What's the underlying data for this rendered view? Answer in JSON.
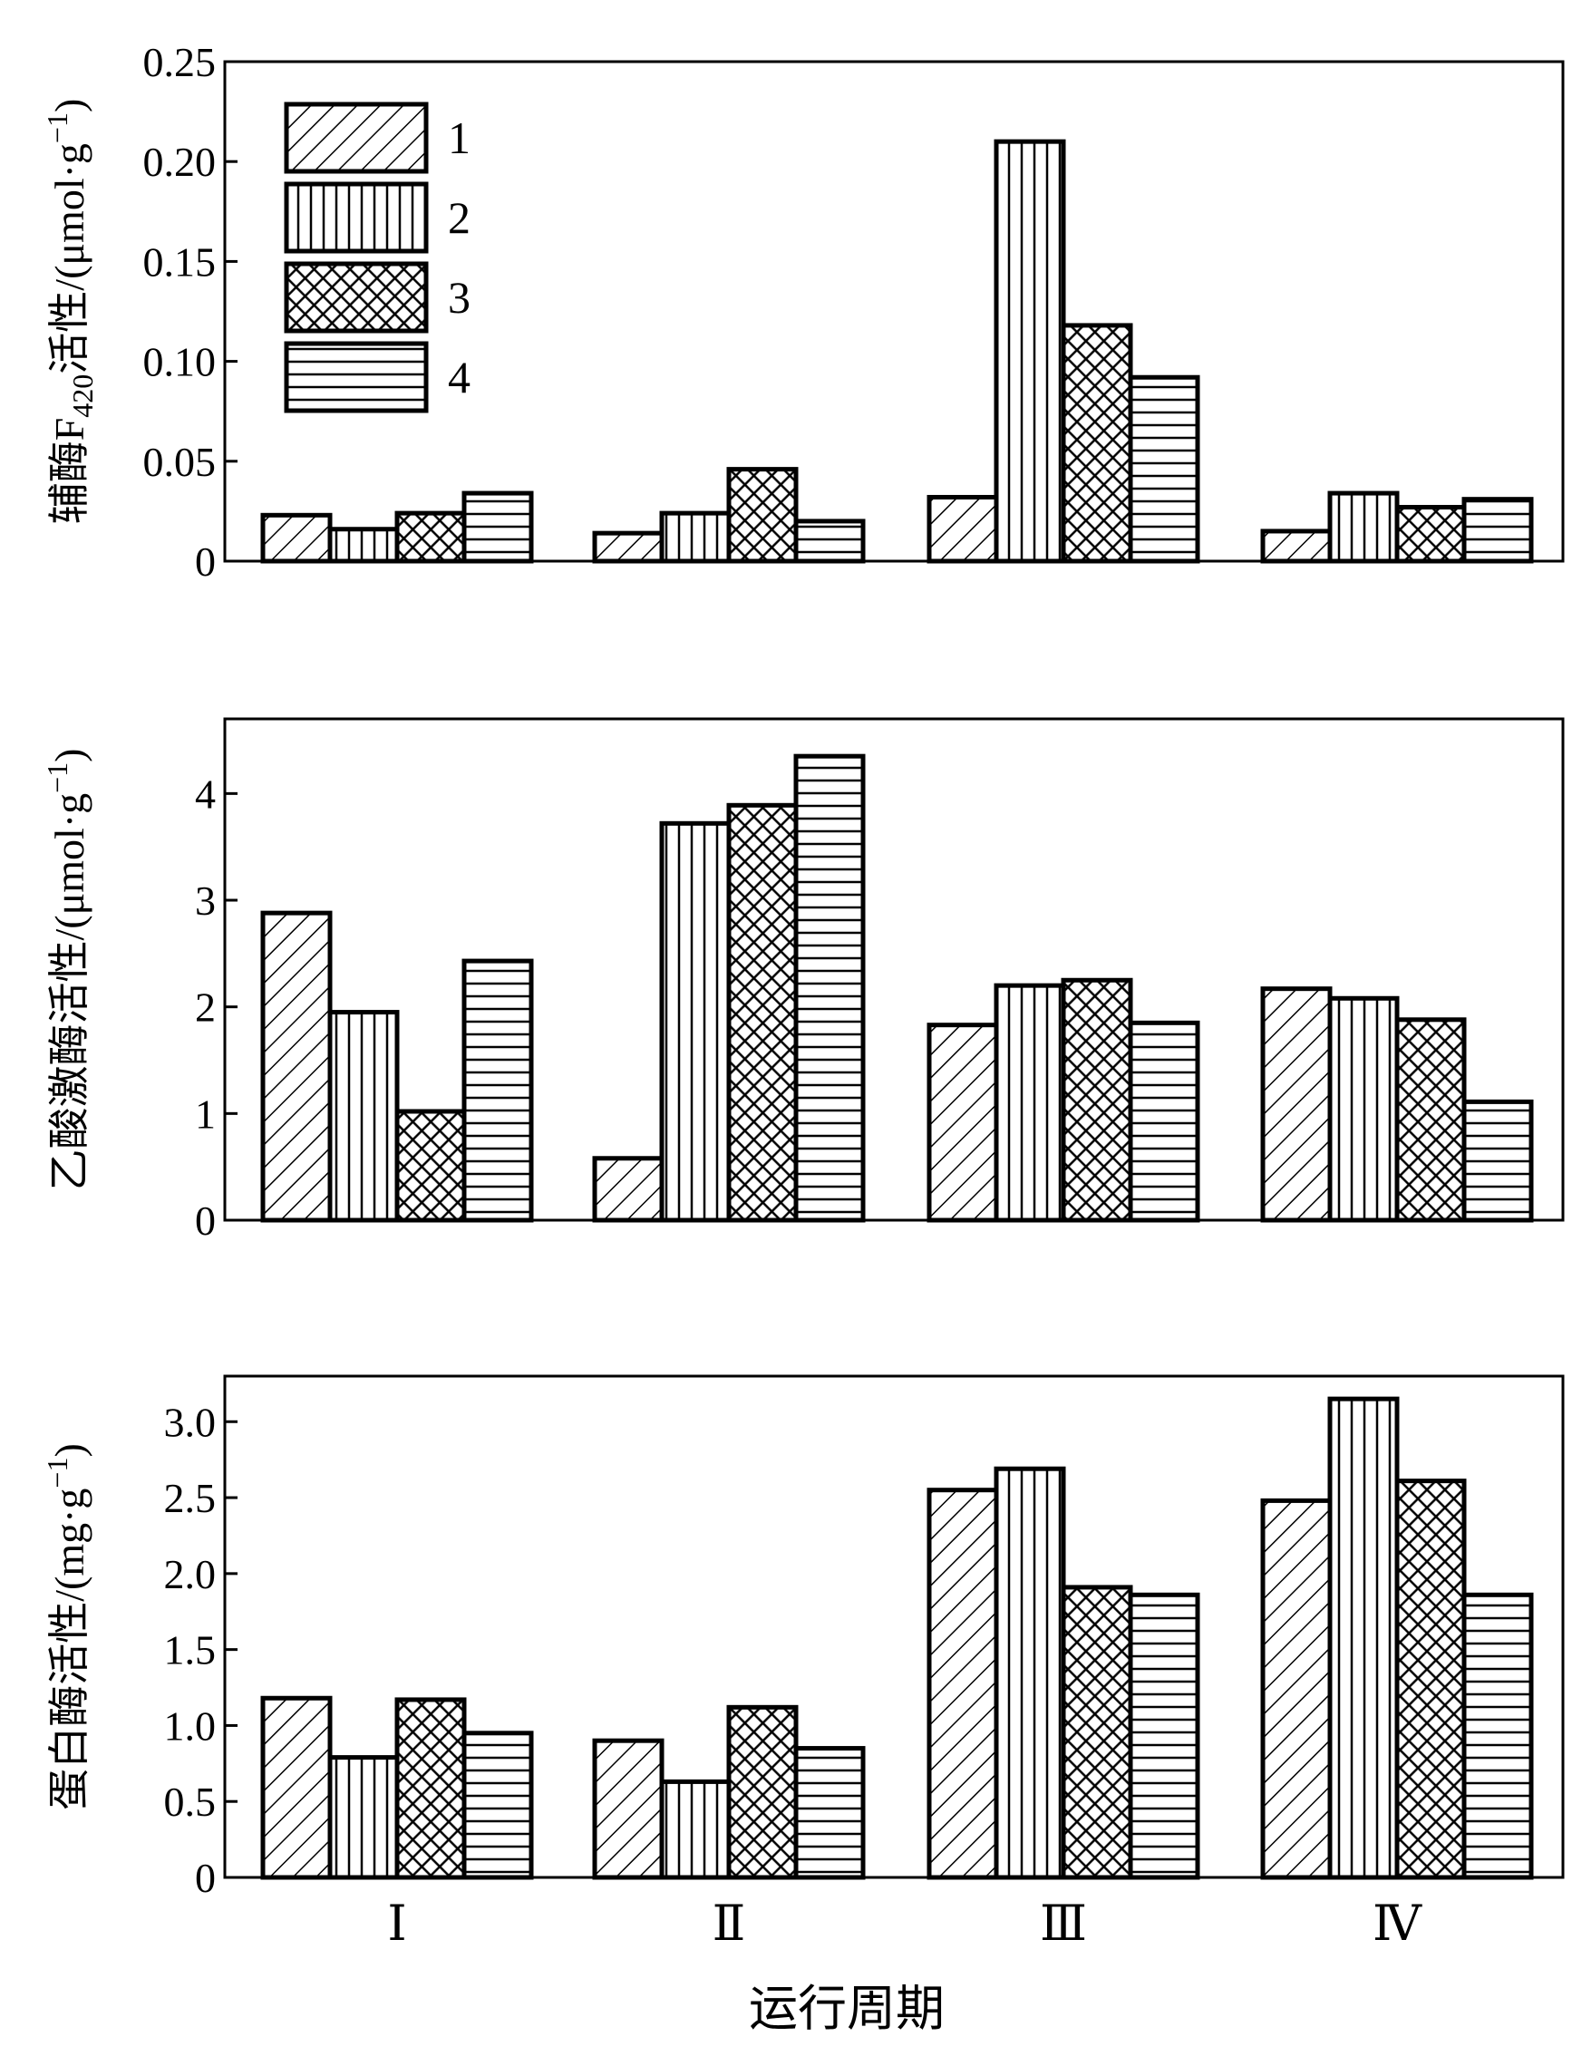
{
  "chart_data": [
    {
      "type": "bar",
      "ylabel": "辅酶F420活性/(μmol·g⁻¹)",
      "ylabel_parts": {
        "a": "辅酶F",
        "sub": "420",
        "b": "活性/(μmol·g",
        "sup": "−1",
        "c": ")"
      },
      "ylim": [
        0,
        0.25
      ],
      "yticks": [
        "0",
        "0.05",
        "0.10",
        "0.15",
        "0.20",
        "0.25"
      ],
      "ytick_values": [
        0,
        0.05,
        0.1,
        0.15,
        0.2,
        0.25
      ],
      "categories": [
        "Ⅰ",
        "Ⅱ",
        "Ⅲ",
        "Ⅳ"
      ],
      "legend": {
        "position": "top-left",
        "entries": [
          "1",
          "2",
          "3",
          "4"
        ]
      },
      "series": [
        {
          "name": "1",
          "pattern": "diagonal",
          "values": [
            0.023,
            0.014,
            0.032,
            0.015
          ]
        },
        {
          "name": "2",
          "pattern": "vertical",
          "values": [
            0.016,
            0.024,
            0.21,
            0.034
          ]
        },
        {
          "name": "3",
          "pattern": "crosshatch",
          "values": [
            0.024,
            0.046,
            0.118,
            0.027
          ]
        },
        {
          "name": "4",
          "pattern": "horizontal",
          "values": [
            0.034,
            0.02,
            0.092,
            0.031
          ]
        }
      ]
    },
    {
      "type": "bar",
      "ylabel": "乙酸激酶活性/(μmol·g⁻¹)",
      "ylabel_parts": {
        "a": "乙酸激酶活性/(μmol·g",
        "sup": "−1",
        "c": ")"
      },
      "ylim": [
        0,
        4.7
      ],
      "yticks": [
        "0",
        "1",
        "2",
        "3",
        "4"
      ],
      "ytick_values": [
        0,
        1,
        2,
        3,
        4
      ],
      "categories": [
        "Ⅰ",
        "Ⅱ",
        "Ⅲ",
        "Ⅳ"
      ],
      "series": [
        {
          "name": "1",
          "pattern": "diagonal",
          "values": [
            2.88,
            0.58,
            1.83,
            2.17
          ]
        },
        {
          "name": "2",
          "pattern": "vertical",
          "values": [
            1.95,
            3.72,
            2.2,
            2.08
          ]
        },
        {
          "name": "3",
          "pattern": "crosshatch",
          "values": [
            1.02,
            3.89,
            2.25,
            1.88
          ]
        },
        {
          "name": "4",
          "pattern": "horizontal",
          "values": [
            2.43,
            4.35,
            1.85,
            1.11
          ]
        }
      ]
    },
    {
      "type": "bar",
      "ylabel": "蛋白酶活性/(mg·g⁻¹)",
      "ylabel_parts": {
        "a": "蛋白酶活性/(mg·g",
        "sup": "−1",
        "c": ")"
      },
      "ylim": [
        0,
        3.3
      ],
      "yticks": [
        "0",
        "0.5",
        "1.0",
        "1.5",
        "2.0",
        "2.5",
        "3.0"
      ],
      "ytick_values": [
        0,
        0.5,
        1.0,
        1.5,
        2.0,
        2.5,
        3.0
      ],
      "categories": [
        "Ⅰ",
        "Ⅱ",
        "Ⅲ",
        "Ⅳ"
      ],
      "xlabel": "运行周期",
      "series": [
        {
          "name": "1",
          "pattern": "diagonal",
          "values": [
            1.18,
            0.9,
            2.55,
            2.48
          ]
        },
        {
          "name": "2",
          "pattern": "vertical",
          "values": [
            0.79,
            0.63,
            2.69,
            3.15
          ]
        },
        {
          "name": "3",
          "pattern": "crosshatch",
          "values": [
            1.17,
            1.12,
            1.91,
            2.61
          ]
        },
        {
          "name": "4",
          "pattern": "horizontal",
          "values": [
            0.95,
            0.85,
            1.86,
            1.86
          ]
        }
      ]
    }
  ]
}
